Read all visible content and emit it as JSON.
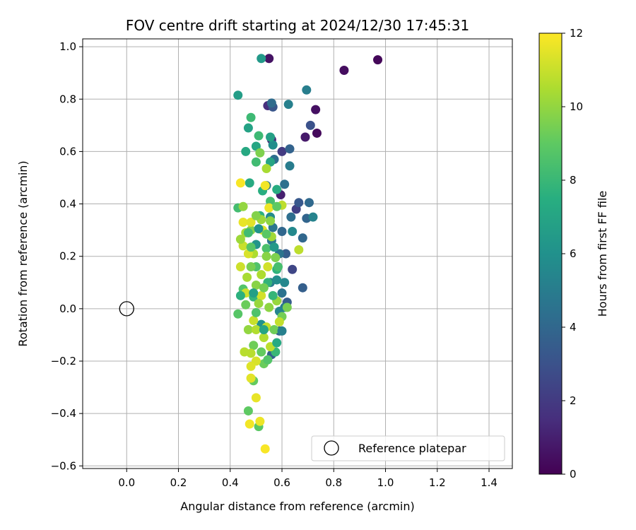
{
  "chart_data": {
    "type": "scatter",
    "title": "FOV centre drift starting at 2024/12/30 17:45:31",
    "xlabel": "Angular distance from reference (arcmin)",
    "ylabel": "Rotation from reference (arcmin)",
    "xlim": [
      -0.17,
      1.49
    ],
    "ylim": [
      -0.61,
      1.03
    ],
    "xticks": [
      "0.0",
      "0.2",
      "0.4",
      "0.6",
      "0.8",
      "1.0",
      "1.2",
      "1.4"
    ],
    "xtick_values": [
      0.0,
      0.2,
      0.4,
      0.6,
      0.8,
      1.0,
      1.2,
      1.4
    ],
    "yticks": [
      "−0.6",
      "−0.4",
      "−0.2",
      "0.0",
      "0.2",
      "0.4",
      "0.6",
      "0.8",
      "1.0"
    ],
    "ytick_values": [
      -0.6,
      -0.4,
      -0.2,
      0.0,
      0.2,
      0.4,
      0.6,
      0.8,
      1.0
    ],
    "grid": true,
    "legend": {
      "position": "bottom-right",
      "entries": [
        {
          "label": "Reference platepar",
          "marker": "open-circle"
        }
      ]
    },
    "reference": {
      "x": 0.0,
      "y": 0.0
    },
    "colorbar": {
      "label": "Hours from first FF file",
      "range": [
        0,
        12
      ],
      "ticks": [
        "0",
        "2",
        "4",
        "6",
        "8",
        "10",
        "12"
      ],
      "tick_values": [
        0,
        2,
        4,
        6,
        8,
        10,
        12
      ],
      "colormap": "viridis"
    },
    "points": [
      {
        "x": 0.97,
        "y": 0.95,
        "h": 0.2
      },
      {
        "x": 0.84,
        "y": 0.91,
        "h": 0.4
      },
      {
        "x": 0.55,
        "y": 0.955,
        "h": 0.6
      },
      {
        "x": 0.735,
        "y": 0.67,
        "h": 0.3
      },
      {
        "x": 0.73,
        "y": 0.76,
        "h": 0.5
      },
      {
        "x": 0.69,
        "y": 0.655,
        "h": 0.8
      },
      {
        "x": 0.595,
        "y": 0.435,
        "h": 1.0
      },
      {
        "x": 0.56,
        "y": 0.645,
        "h": 1.3
      },
      {
        "x": 0.545,
        "y": 0.775,
        "h": 1.5
      },
      {
        "x": 0.6,
        "y": 0.6,
        "h": 2.0
      },
      {
        "x": 0.655,
        "y": 0.38,
        "h": 2.2
      },
      {
        "x": 0.64,
        "y": 0.15,
        "h": 2.5
      },
      {
        "x": 0.71,
        "y": 0.7,
        "h": 3.0
      },
      {
        "x": 0.565,
        "y": 0.77,
        "h": 3.2
      },
      {
        "x": 0.665,
        "y": 0.405,
        "h": 3.3
      },
      {
        "x": 0.615,
        "y": 0.21,
        "h": 3.5
      },
      {
        "x": 0.62,
        "y": 0.025,
        "h": 3.5
      },
      {
        "x": 0.59,
        "y": -0.085,
        "h": 3.6
      },
      {
        "x": 0.68,
        "y": 0.08,
        "h": 3.6
      },
      {
        "x": 0.56,
        "y": -0.175,
        "h": 3.7
      },
      {
        "x": 0.63,
        "y": 0.61,
        "h": 3.8
      },
      {
        "x": 0.695,
        "y": 0.345,
        "h": 3.9
      },
      {
        "x": 0.68,
        "y": 0.27,
        "h": 4.0
      },
      {
        "x": 0.6,
        "y": 0.295,
        "h": 4.0
      },
      {
        "x": 0.705,
        "y": 0.405,
        "h": 4.1
      },
      {
        "x": 0.56,
        "y": 0.785,
        "h": 4.2
      },
      {
        "x": 0.57,
        "y": 0.57,
        "h": 4.3
      },
      {
        "x": 0.635,
        "y": 0.35,
        "h": 4.3
      },
      {
        "x": 0.61,
        "y": 0.475,
        "h": 4.4
      },
      {
        "x": 0.6,
        "y": 0.06,
        "h": 4.5
      },
      {
        "x": 0.59,
        "y": 0.21,
        "h": 4.6
      },
      {
        "x": 0.565,
        "y": 0.31,
        "h": 4.7
      },
      {
        "x": 0.54,
        "y": 0.47,
        "h": 4.7
      },
      {
        "x": 0.56,
        "y": 0.26,
        "h": 4.8
      },
      {
        "x": 0.61,
        "y": 0.005,
        "h": 4.9
      },
      {
        "x": 0.555,
        "y": 0.1,
        "h": 5.0
      },
      {
        "x": 0.63,
        "y": 0.545,
        "h": 5.0
      },
      {
        "x": 0.695,
        "y": 0.835,
        "h": 5.1
      },
      {
        "x": 0.625,
        "y": 0.78,
        "h": 5.2
      },
      {
        "x": 0.72,
        "y": 0.35,
        "h": 5.3
      },
      {
        "x": 0.59,
        "y": -0.01,
        "h": 5.4
      },
      {
        "x": 0.61,
        "y": 0.1,
        "h": 5.5
      },
      {
        "x": 0.64,
        "y": 0.295,
        "h": 5.6
      },
      {
        "x": 0.555,
        "y": 0.35,
        "h": 5.7
      },
      {
        "x": 0.565,
        "y": 0.625,
        "h": 5.8
      },
      {
        "x": 0.52,
        "y": -0.06,
        "h": 6.0
      },
      {
        "x": 0.5,
        "y": 0.245,
        "h": 6.2
      },
      {
        "x": 0.52,
        "y": 0.955,
        "h": 6.4
      },
      {
        "x": 0.43,
        "y": 0.815,
        "h": 6.6
      },
      {
        "x": 0.555,
        "y": 0.655,
        "h": 6.8
      },
      {
        "x": 0.47,
        "y": 0.69,
        "h": 6.9
      },
      {
        "x": 0.555,
        "y": 0.56,
        "h": 7.0
      },
      {
        "x": 0.5,
        "y": 0.62,
        "h": 7.1
      },
      {
        "x": 0.46,
        "y": 0.6,
        "h": 7.2
      },
      {
        "x": 0.475,
        "y": 0.48,
        "h": 7.3
      },
      {
        "x": 0.58,
        "y": 0.455,
        "h": 7.4
      },
      {
        "x": 0.525,
        "y": 0.45,
        "h": 7.5
      },
      {
        "x": 0.515,
        "y": 0.355,
        "h": 7.6
      },
      {
        "x": 0.58,
        "y": 0.15,
        "h": 7.7
      },
      {
        "x": 0.545,
        "y": 0.1,
        "h": 7.8
      },
      {
        "x": 0.49,
        "y": 0.045,
        "h": 7.9
      },
      {
        "x": 0.575,
        "y": -0.165,
        "h": 8.0
      },
      {
        "x": 0.48,
        "y": 0.73,
        "h": 8.1
      },
      {
        "x": 0.51,
        "y": 0.66,
        "h": 8.1
      },
      {
        "x": 0.5,
        "y": 0.56,
        "h": 8.2
      },
      {
        "x": 0.43,
        "y": 0.385,
        "h": 8.3
      },
      {
        "x": 0.555,
        "y": 0.41,
        "h": 8.4
      },
      {
        "x": 0.54,
        "y": 0.23,
        "h": 8.5
      },
      {
        "x": 0.5,
        "y": 0.16,
        "h": 8.6
      },
      {
        "x": 0.45,
        "y": 0.075,
        "h": 8.7
      },
      {
        "x": 0.43,
        "y": -0.02,
        "h": 8.8
      },
      {
        "x": 0.51,
        "y": -0.45,
        "h": 8.9
      },
      {
        "x": 0.47,
        "y": -0.39,
        "h": 9.0
      },
      {
        "x": 0.49,
        "y": -0.275,
        "h": 9.1
      },
      {
        "x": 0.53,
        "y": -0.21,
        "h": 9.2
      },
      {
        "x": 0.49,
        "y": -0.14,
        "h": 9.3
      },
      {
        "x": 0.6,
        "y": -0.03,
        "h": 9.4
      },
      {
        "x": 0.62,
        "y": 0.005,
        "h": 9.5
      },
      {
        "x": 0.515,
        "y": 0.595,
        "h": 9.6
      },
      {
        "x": 0.48,
        "y": 0.3,
        "h": 9.7
      },
      {
        "x": 0.54,
        "y": 0.2,
        "h": 9.8
      },
      {
        "x": 0.5,
        "y": 0.09,
        "h": 9.8
      },
      {
        "x": 0.55,
        "y": 0.005,
        "h": 9.9
      },
      {
        "x": 0.47,
        "y": -0.08,
        "h": 10.0
      },
      {
        "x": 0.58,
        "y": 0.03,
        "h": 10.1
      },
      {
        "x": 0.52,
        "y": 0.34,
        "h": 10.2
      },
      {
        "x": 0.46,
        "y": 0.29,
        "h": 10.3
      },
      {
        "x": 0.54,
        "y": 0.535,
        "h": 10.4
      },
      {
        "x": 0.49,
        "y": 0.21,
        "h": 10.5
      },
      {
        "x": 0.53,
        "y": -0.11,
        "h": 10.6
      },
      {
        "x": 0.48,
        "y": -0.17,
        "h": 10.7
      },
      {
        "x": 0.665,
        "y": 0.225,
        "h": 10.8
      },
      {
        "x": 0.6,
        "y": 0.395,
        "h": 10.8
      },
      {
        "x": 0.59,
        "y": -0.05,
        "h": 10.9
      },
      {
        "x": 0.45,
        "y": 0.24,
        "h": 11.0
      },
      {
        "x": 0.44,
        "y": 0.16,
        "h": 11.1
      },
      {
        "x": 0.52,
        "y": 0.05,
        "h": 11.2
      },
      {
        "x": 0.5,
        "y": -0.2,
        "h": 11.3
      },
      {
        "x": 0.48,
        "y": -0.22,
        "h": 11.4
      },
      {
        "x": 0.48,
        "y": -0.265,
        "h": 11.5
      },
      {
        "x": 0.5,
        "y": -0.34,
        "h": 11.6
      },
      {
        "x": 0.515,
        "y": -0.43,
        "h": 11.7
      },
      {
        "x": 0.475,
        "y": -0.44,
        "h": 11.8
      },
      {
        "x": 0.535,
        "y": -0.535,
        "h": 11.9
      },
      {
        "x": 0.44,
        "y": 0.48,
        "h": 11.9
      },
      {
        "x": 0.535,
        "y": 0.47,
        "h": 11.8
      },
      {
        "x": 0.55,
        "y": 0.385,
        "h": 11.7
      },
      {
        "x": 0.45,
        "y": 0.33,
        "h": 11.6
      },
      {
        "x": 0.48,
        "y": 0.33,
        "h": 11.5
      },
      {
        "x": 0.525,
        "y": 0.3,
        "h": 11.4
      },
      {
        "x": 0.47,
        "y": 0.21,
        "h": 11.3
      },
      {
        "x": 0.545,
        "y": 0.16,
        "h": 11.2
      },
      {
        "x": 0.46,
        "y": 0.06,
        "h": 11.1
      },
      {
        "x": 0.49,
        "y": -0.045,
        "h": 11.0
      },
      {
        "x": 0.54,
        "y": -0.07,
        "h": 10.9
      },
      {
        "x": 0.555,
        "y": -0.145,
        "h": 10.8
      },
      {
        "x": 0.455,
        "y": -0.165,
        "h": 10.7
      },
      {
        "x": 0.5,
        "y": -0.08,
        "h": 10.6
      },
      {
        "x": 0.52,
        "y": 0.13,
        "h": 10.5
      },
      {
        "x": 0.465,
        "y": 0.12,
        "h": 10.4
      },
      {
        "x": 0.56,
        "y": 0.275,
        "h": 10.3
      },
      {
        "x": 0.44,
        "y": 0.265,
        "h": 10.2
      },
      {
        "x": 0.51,
        "y": 0.02,
        "h": 10.1
      },
      {
        "x": 0.45,
        "y": 0.39,
        "h": 10.0
      },
      {
        "x": 0.555,
        "y": 0.335,
        "h": 9.9
      },
      {
        "x": 0.5,
        "y": 0.355,
        "h": 9.7
      },
      {
        "x": 0.575,
        "y": 0.195,
        "h": 9.6
      },
      {
        "x": 0.48,
        "y": 0.16,
        "h": 9.5
      },
      {
        "x": 0.53,
        "y": 0.08,
        "h": 9.4
      },
      {
        "x": 0.57,
        "y": -0.08,
        "h": 9.3
      },
      {
        "x": 0.46,
        "y": 0.015,
        "h": 9.2
      },
      {
        "x": 0.52,
        "y": -0.165,
        "h": 9.1
      },
      {
        "x": 0.58,
        "y": 0.39,
        "h": 9.0
      },
      {
        "x": 0.54,
        "y": 0.285,
        "h": 8.9
      },
      {
        "x": 0.48,
        "y": 0.235,
        "h": 8.8
      },
      {
        "x": 0.545,
        "y": -0.195,
        "h": 8.7
      },
      {
        "x": 0.5,
        "y": -0.015,
        "h": 8.6
      },
      {
        "x": 0.585,
        "y": 0.16,
        "h": 8.4
      },
      {
        "x": 0.47,
        "y": 0.29,
        "h": 8.2
      },
      {
        "x": 0.565,
        "y": 0.05,
        "h": 7.9
      },
      {
        "x": 0.44,
        "y": 0.05,
        "h": 7.6
      },
      {
        "x": 0.58,
        "y": -0.13,
        "h": 7.3
      },
      {
        "x": 0.53,
        "y": -0.08,
        "h": 7.0
      },
      {
        "x": 0.49,
        "y": 0.06,
        "h": 6.7
      },
      {
        "x": 0.57,
        "y": 0.235,
        "h": 6.4
      },
      {
        "x": 0.51,
        "y": 0.305,
        "h": 6.1
      },
      {
        "x": 0.58,
        "y": 0.11,
        "h": 5.8
      },
      {
        "x": 0.6,
        "y": -0.085,
        "h": 5.2
      }
    ]
  }
}
